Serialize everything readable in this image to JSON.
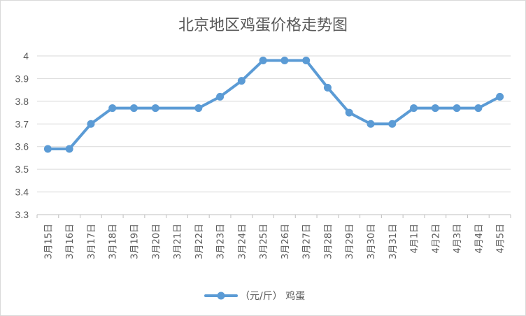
{
  "chart_data": {
    "type": "line",
    "title": "北京地区鸡蛋价格走势图",
    "xlabel": "",
    "ylabel": "",
    "ylim": [
      3.3,
      4
    ],
    "yticks": [
      "3.3",
      "3.4",
      "3.5",
      "3.6",
      "3.7",
      "3.8",
      "3.9",
      "4"
    ],
    "grid": true,
    "legend_position": "bottom",
    "categories": [
      "3月15日",
      "3月16日",
      "3月17日",
      "3月18日",
      "3月19日",
      "3月20日",
      "3月21日",
      "3月22日",
      "3月23日",
      "3月24日",
      "3月25日",
      "3月26日",
      "3月27日",
      "3月28日",
      "3月29日",
      "3月30日",
      "3月31日",
      "4月1日",
      "4月2日",
      "4月3日",
      "4月4日",
      "4月5日"
    ],
    "series": [
      {
        "name": "（元/斤） 鸡蛋",
        "color": "#5b9bd5",
        "values": [
          3.59,
          3.59,
          3.7,
          3.77,
          3.77,
          3.77,
          null,
          3.77,
          3.82,
          3.89,
          3.98,
          3.98,
          3.98,
          3.86,
          3.75,
          3.7,
          3.7,
          3.77,
          3.77,
          3.77,
          3.77,
          3.82
        ]
      }
    ]
  }
}
